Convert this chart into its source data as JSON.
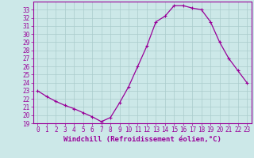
{
  "hours": [
    0,
    1,
    2,
    3,
    4,
    5,
    6,
    7,
    8,
    9,
    10,
    11,
    12,
    13,
    14,
    15,
    16,
    17,
    18,
    19,
    20,
    21,
    22,
    23
  ],
  "values": [
    23.0,
    22.3,
    21.7,
    21.2,
    20.8,
    20.3,
    19.8,
    19.2,
    19.7,
    21.5,
    23.5,
    26.0,
    28.5,
    31.5,
    32.2,
    33.5,
    33.5,
    33.2,
    33.0,
    31.5,
    29.0,
    27.0,
    25.5,
    24.0
  ],
  "line_color": "#990099",
  "marker": "+",
  "marker_size": 3,
  "marker_lw": 0.8,
  "line_width": 0.9,
  "bg_color": "#cce8e8",
  "grid_color": "#aacccc",
  "xlabel": "Windchill (Refroidissement éolien,°C)",
  "xlim": [
    -0.5,
    23.5
  ],
  "ylim": [
    19,
    34
  ],
  "yticks": [
    19,
    20,
    21,
    22,
    23,
    24,
    25,
    26,
    27,
    28,
    29,
    30,
    31,
    32,
    33
  ],
  "xticks": [
    0,
    1,
    2,
    3,
    4,
    5,
    6,
    7,
    8,
    9,
    10,
    11,
    12,
    13,
    14,
    15,
    16,
    17,
    18,
    19,
    20,
    21,
    22,
    23
  ],
  "tick_color": "#990099",
  "label_color": "#990099",
  "xlabel_fontsize": 6.5,
  "tick_fontsize": 5.5,
  "spine_color": "#990099"
}
